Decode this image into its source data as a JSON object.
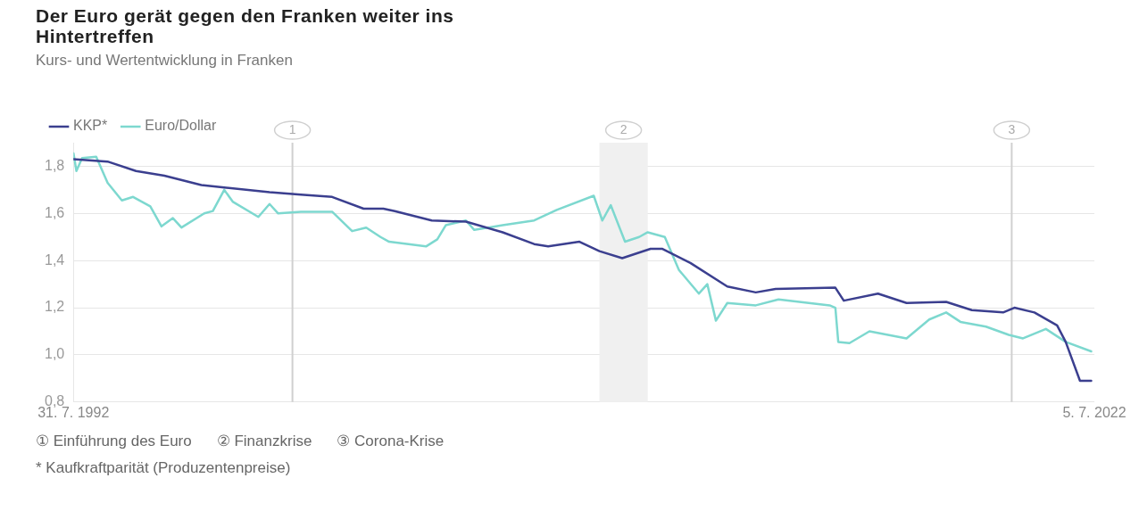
{
  "chart_data": {
    "type": "line",
    "title": "Der Euro gerät gegen den Franken weiter ins Hintertreffen",
    "subtitle": "Kurs- und Wertentwicklung in Franken",
    "series": [
      {
        "name": "KKP*",
        "color": "#3b3f8f",
        "x": [
          "1992-08",
          "1993-08",
          "1994-06",
          "1995-04",
          "1996-05",
          "1997-01",
          "1998-05",
          "1999-04",
          "2000-03",
          "2001-02",
          "2001-09",
          "2002-01",
          "2003-02",
          "2004-02",
          "2005-03",
          "2006-02",
          "2006-07",
          "2007-06",
          "2008-01",
          "2008-09",
          "2009-07",
          "2009-11",
          "2010-09",
          "2011-10",
          "2012-08",
          "2013-03",
          "2014-12",
          "2015-03",
          "2016-03",
          "2017-01",
          "2018-03",
          "2018-12",
          "2019-11",
          "2020-03",
          "2020-10",
          "2021-06",
          "2021-09",
          "2022-02",
          "2022-06"
        ],
        "values": [
          1.83,
          1.82,
          1.78,
          1.76,
          1.72,
          1.71,
          1.69,
          1.68,
          1.67,
          1.62,
          1.62,
          1.61,
          1.57,
          1.565,
          1.52,
          1.47,
          1.46,
          1.48,
          1.44,
          1.41,
          1.45,
          1.45,
          1.39,
          1.29,
          1.265,
          1.28,
          1.285,
          1.23,
          1.26,
          1.22,
          1.225,
          1.19,
          1.18,
          1.2,
          1.18,
          1.125,
          1.055,
          0.89,
          0.89
        ]
      },
      {
        "name": "Euro/Dollar",
        "color": "#7dd8cf",
        "x": [
          "1992-08",
          "1992-09",
          "1992-11",
          "1993-04",
          "1993-08",
          "1994-01",
          "1994-05",
          "1994-11",
          "1995-03",
          "1995-07",
          "1995-10",
          "1996-06",
          "1996-09",
          "1997-01",
          "1997-04",
          "1998-01",
          "1998-05",
          "1998-08",
          "1999-04",
          "2000-03",
          "2000-10",
          "2001-03",
          "2001-08",
          "2001-11",
          "2002-12",
          "2003-04",
          "2003-07",
          "2004-02",
          "2004-05",
          "2005-03",
          "2006-02",
          "2006-10",
          "2007-11",
          "2008-02",
          "2008-05",
          "2008-10",
          "2009-03",
          "2009-06",
          "2009-12",
          "2010-05",
          "2010-12",
          "2011-03",
          "2011-06",
          "2011-10",
          "2012-08",
          "2013-04",
          "2014-10",
          "2014-12",
          "2015-01",
          "2015-05",
          "2015-12",
          "2017-01",
          "2017-09",
          "2018-03",
          "2018-08",
          "2019-05",
          "2020-01",
          "2020-06",
          "2021-02",
          "2021-09",
          "2022-06"
        ],
        "values": [
          1.855,
          1.78,
          1.835,
          1.84,
          1.73,
          1.655,
          1.67,
          1.63,
          1.545,
          1.58,
          1.54,
          1.6,
          1.61,
          1.7,
          1.65,
          1.585,
          1.64,
          1.6,
          1.607,
          1.607,
          1.525,
          1.54,
          1.5,
          1.48,
          1.46,
          1.49,
          1.55,
          1.57,
          1.53,
          1.55,
          1.57,
          1.615,
          1.675,
          1.57,
          1.635,
          1.48,
          1.5,
          1.52,
          1.5,
          1.36,
          1.26,
          1.3,
          1.145,
          1.22,
          1.21,
          1.235,
          1.21,
          1.2,
          1.055,
          1.05,
          1.1,
          1.07,
          1.15,
          1.18,
          1.14,
          1.12,
          1.085,
          1.07,
          1.11,
          1.055,
          1.015
        ]
      }
    ],
    "xlim": [
      "1992-07-31",
      "2022-07-05"
    ],
    "xticks": [
      {
        "value": "1992-07-31",
        "label": "31. 7. 1992"
      },
      {
        "value": "2022-07-05",
        "label": "5. 7. 2022"
      }
    ],
    "ylim": [
      0.8,
      1.9
    ],
    "yticks": [
      {
        "value": 0.8,
        "label": "0,8"
      },
      {
        "value": 1.0,
        "label": "1,0"
      },
      {
        "value": 1.2,
        "label": "1,2"
      },
      {
        "value": 1.4,
        "label": "1,4"
      },
      {
        "value": 1.6,
        "label": "1,6"
      },
      {
        "value": 1.8,
        "label": "1,8"
      }
    ],
    "ref_lines": [
      {
        "axis": "x",
        "value": "1999-01-01",
        "label": "1",
        "color": "#d0d0d0"
      },
      {
        "axis": "x",
        "value": "2020-02",
        "label": "3",
        "color": "#d0d0d0"
      }
    ],
    "bands": [
      {
        "axis": "x",
        "from": "2008-01",
        "to": "2009-06",
        "label": "2",
        "color": "#f0f0f0"
      }
    ],
    "annotations": [
      "① Einführung des Euro",
      "② Finanzkrise",
      "③ Corona-Krise",
      "* Kaufkraftparität (Produzentenpreise)"
    ],
    "grid": "y",
    "legend": "top left",
    "marker": "none",
    "line_style": "solid"
  }
}
